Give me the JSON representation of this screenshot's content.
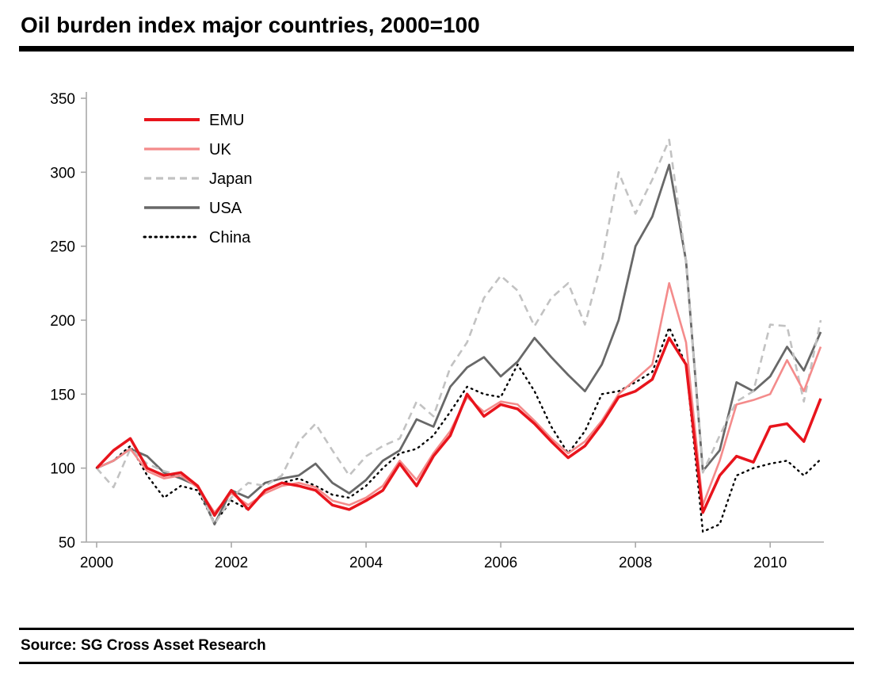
{
  "header": {
    "title": "Oil burden index major countries, 2000=100"
  },
  "footer": {
    "source": "Source: SG Cross Asset Research"
  },
  "chart_data": {
    "type": "line",
    "title": "Oil burden index major countries, 2000=100",
    "xlabel": "",
    "ylabel": "",
    "xlim": [
      2000,
      2010.75
    ],
    "ylim": [
      50,
      350
    ],
    "yticks": [
      50,
      100,
      150,
      200,
      250,
      300,
      350
    ],
    "xticks": [
      2000,
      2002,
      2004,
      2006,
      2008,
      2010
    ],
    "grid": false,
    "legend_position": "top-left-inside",
    "axis_color": "#a9a9a9",
    "x": [
      2000,
      2000.25,
      2000.5,
      2000.75,
      2001,
      2001.25,
      2001.5,
      2001.75,
      2002,
      2002.25,
      2002.5,
      2002.75,
      2003,
      2003.25,
      2003.5,
      2003.75,
      2004,
      2004.25,
      2004.5,
      2004.75,
      2005,
      2005.25,
      2005.5,
      2005.75,
      2006,
      2006.25,
      2006.5,
      2006.75,
      2007,
      2007.25,
      2007.5,
      2007.75,
      2008,
      2008.25,
      2008.5,
      2008.75,
      2009,
      2009.25,
      2009.5,
      2009.75,
      2010,
      2010.25,
      2010.5,
      2010.75
    ],
    "series": [
      {
        "name": "EMU",
        "color": "#e8141c",
        "style": "solid",
        "width": 3.5,
        "values": [
          100,
          112,
          120,
          100,
          95,
          97,
          88,
          68,
          85,
          72,
          85,
          90,
          88,
          85,
          75,
          72,
          78,
          85,
          103,
          88,
          108,
          122,
          150,
          135,
          143,
          140,
          130,
          118,
          107,
          115,
          130,
          148,
          152,
          160,
          188,
          170,
          70,
          95,
          108,
          104,
          128,
          130,
          118,
          147
        ]
      },
      {
        "name": "UK",
        "color": "#f48b8b",
        "style": "solid",
        "width": 2.6,
        "values": [
          100,
          105,
          113,
          98,
          93,
          95,
          87,
          70,
          83,
          75,
          83,
          88,
          90,
          87,
          78,
          75,
          80,
          88,
          105,
          92,
          110,
          125,
          148,
          138,
          145,
          143,
          132,
          120,
          110,
          118,
          132,
          150,
          160,
          170,
          225,
          185,
          75,
          105,
          143,
          146,
          150,
          173,
          152,
          182
        ]
      },
      {
        "name": "Japan",
        "color": "#c2c2c2",
        "style": "dashed",
        "width": 2.6,
        "values": [
          100,
          87,
          113,
          103,
          98,
          95,
          88,
          62,
          80,
          90,
          88,
          95,
          118,
          130,
          112,
          95,
          108,
          115,
          120,
          145,
          135,
          168,
          185,
          215,
          230,
          220,
          196,
          215,
          225,
          197,
          240,
          300,
          272,
          295,
          322,
          240,
          97,
          122,
          145,
          152,
          197,
          196,
          145,
          200
        ]
      },
      {
        "name": "USA",
        "color": "#686868",
        "style": "solid",
        "width": 2.8,
        "values": [
          100,
          105,
          113,
          108,
          97,
          93,
          88,
          62,
          85,
          80,
          90,
          93,
          95,
          103,
          90,
          83,
          92,
          105,
          112,
          133,
          128,
          155,
          168,
          175,
          162,
          172,
          188,
          175,
          163,
          152,
          170,
          200,
          250,
          270,
          305,
          240,
          98,
          112,
          158,
          152,
          162,
          182,
          166,
          192
        ]
      },
      {
        "name": "China",
        "color": "#000000",
        "style": "dotted",
        "width": 2.4,
        "values": [
          100,
          105,
          115,
          95,
          80,
          88,
          85,
          63,
          78,
          72,
          85,
          90,
          93,
          88,
          82,
          80,
          88,
          100,
          110,
          113,
          122,
          138,
          155,
          150,
          148,
          170,
          152,
          128,
          110,
          125,
          150,
          152,
          158,
          165,
          195,
          170,
          57,
          62,
          95,
          100,
          103,
          105,
          95,
          106
        ]
      }
    ]
  }
}
